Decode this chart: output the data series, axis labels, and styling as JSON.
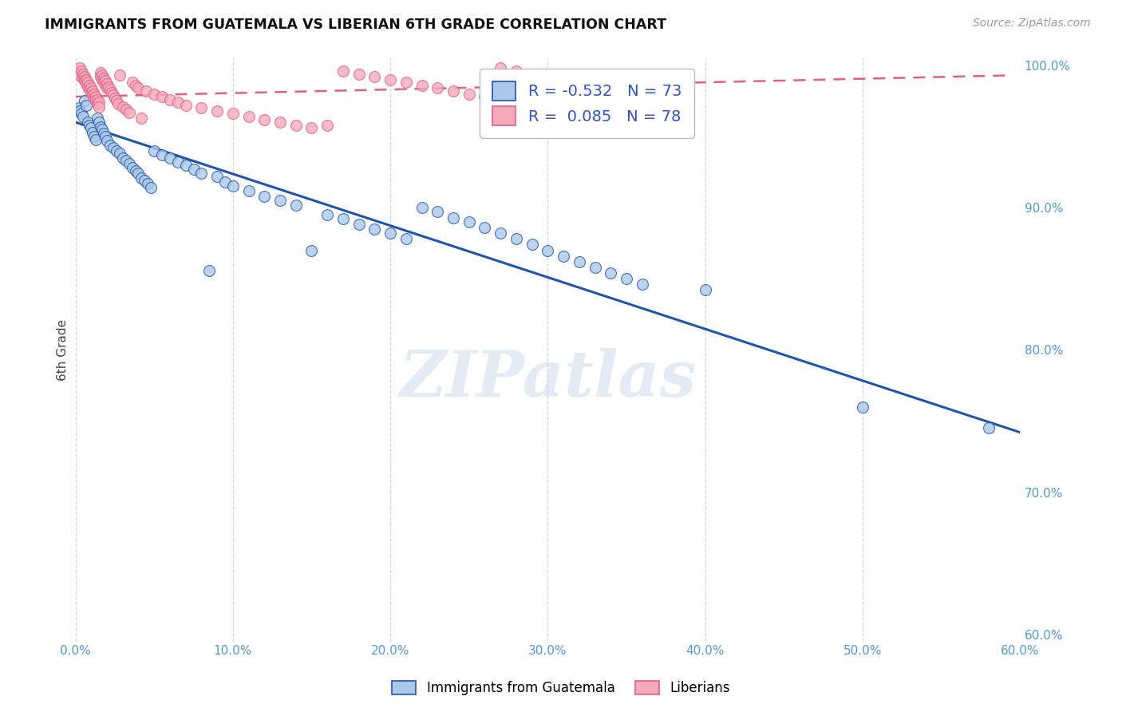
{
  "title": "IMMIGRANTS FROM GUATEMALA VS LIBERIAN 6TH GRADE CORRELATION CHART",
  "source": "Source: ZipAtlas.com",
  "ylabel": "6th Grade",
  "xlim": [
    0.0,
    0.6
  ],
  "ylim": [
    0.595,
    1.005
  ],
  "xticks": [
    0.0,
    0.1,
    0.2,
    0.3,
    0.4,
    0.5,
    0.6
  ],
  "yticks": [
    0.6,
    0.7,
    0.8,
    0.9,
    1.0
  ],
  "xticklabels": [
    "0.0%",
    "10.0%",
    "20.0%",
    "30.0%",
    "40.0%",
    "50.0%",
    "60.0%"
  ],
  "yticklabels": [
    "60.0%",
    "70.0%",
    "80.0%",
    "90.0%",
    "100.0%"
  ],
  "legend_blue_label": "Immigrants from Guatemala",
  "legend_pink_label": "Liberians",
  "r_blue": -0.532,
  "n_blue": 73,
  "r_pink": 0.085,
  "n_pink": 78,
  "blue_color": "#aac8e8",
  "blue_line_color": "#2255aa",
  "pink_color": "#f5aabc",
  "pink_line_color": "#e06080",
  "watermark": "ZIPatlas",
  "bg_color": "#ffffff",
  "grid_color": "#cccccc",
  "blue_scatter": [
    [
      0.002,
      0.97
    ],
    [
      0.003,
      0.968
    ],
    [
      0.004,
      0.966
    ],
    [
      0.005,
      0.964
    ],
    [
      0.006,
      0.975
    ],
    [
      0.007,
      0.972
    ],
    [
      0.008,
      0.96
    ],
    [
      0.009,
      0.958
    ],
    [
      0.01,
      0.956
    ],
    [
      0.011,
      0.953
    ],
    [
      0.012,
      0.95
    ],
    [
      0.013,
      0.948
    ],
    [
      0.014,
      0.963
    ],
    [
      0.015,
      0.96
    ],
    [
      0.016,
      0.957
    ],
    [
      0.017,
      0.955
    ],
    [
      0.018,
      0.952
    ],
    [
      0.019,
      0.95
    ],
    [
      0.02,
      0.947
    ],
    [
      0.022,
      0.944
    ],
    [
      0.024,
      0.942
    ],
    [
      0.026,
      0.94
    ],
    [
      0.028,
      0.938
    ],
    [
      0.03,
      0.935
    ],
    [
      0.032,
      0.933
    ],
    [
      0.034,
      0.931
    ],
    [
      0.036,
      0.928
    ],
    [
      0.038,
      0.926
    ],
    [
      0.04,
      0.924
    ],
    [
      0.042,
      0.921
    ],
    [
      0.044,
      0.919
    ],
    [
      0.046,
      0.917
    ],
    [
      0.048,
      0.914
    ],
    [
      0.05,
      0.94
    ],
    [
      0.055,
      0.937
    ],
    [
      0.06,
      0.935
    ],
    [
      0.065,
      0.932
    ],
    [
      0.07,
      0.93
    ],
    [
      0.075,
      0.927
    ],
    [
      0.08,
      0.924
    ],
    [
      0.085,
      0.856
    ],
    [
      0.09,
      0.922
    ],
    [
      0.095,
      0.918
    ],
    [
      0.1,
      0.915
    ],
    [
      0.11,
      0.912
    ],
    [
      0.12,
      0.908
    ],
    [
      0.13,
      0.905
    ],
    [
      0.14,
      0.902
    ],
    [
      0.15,
      0.87
    ],
    [
      0.16,
      0.895
    ],
    [
      0.17,
      0.892
    ],
    [
      0.18,
      0.888
    ],
    [
      0.19,
      0.885
    ],
    [
      0.2,
      0.882
    ],
    [
      0.21,
      0.878
    ],
    [
      0.22,
      0.9
    ],
    [
      0.23,
      0.897
    ],
    [
      0.24,
      0.893
    ],
    [
      0.25,
      0.89
    ],
    [
      0.26,
      0.886
    ],
    [
      0.27,
      0.882
    ],
    [
      0.28,
      0.878
    ],
    [
      0.29,
      0.874
    ],
    [
      0.3,
      0.87
    ],
    [
      0.31,
      0.866
    ],
    [
      0.32,
      0.862
    ],
    [
      0.33,
      0.858
    ],
    [
      0.34,
      0.854
    ],
    [
      0.35,
      0.85
    ],
    [
      0.36,
      0.846
    ],
    [
      0.4,
      0.842
    ],
    [
      0.5,
      0.76
    ],
    [
      0.58,
      0.745
    ]
  ],
  "pink_scatter": [
    [
      0.001,
      0.995
    ],
    [
      0.002,
      0.993
    ],
    [
      0.003,
      0.998
    ],
    [
      0.004,
      0.996
    ],
    [
      0.005,
      0.994
    ],
    [
      0.005,
      0.991
    ],
    [
      0.006,
      0.992
    ],
    [
      0.006,
      0.989
    ],
    [
      0.007,
      0.99
    ],
    [
      0.007,
      0.987
    ],
    [
      0.008,
      0.988
    ],
    [
      0.008,
      0.985
    ],
    [
      0.009,
      0.986
    ],
    [
      0.009,
      0.983
    ],
    [
      0.01,
      0.984
    ],
    [
      0.01,
      0.981
    ],
    [
      0.011,
      0.982
    ],
    [
      0.011,
      0.979
    ],
    [
      0.012,
      0.98
    ],
    [
      0.012,
      0.977
    ],
    [
      0.013,
      0.978
    ],
    [
      0.013,
      0.975
    ],
    [
      0.014,
      0.976
    ],
    [
      0.014,
      0.973
    ],
    [
      0.015,
      0.974
    ],
    [
      0.015,
      0.971
    ],
    [
      0.016,
      0.995
    ],
    [
      0.016,
      0.992
    ],
    [
      0.017,
      0.993
    ],
    [
      0.017,
      0.99
    ],
    [
      0.018,
      0.991
    ],
    [
      0.018,
      0.988
    ],
    [
      0.019,
      0.989
    ],
    [
      0.019,
      0.986
    ],
    [
      0.02,
      0.987
    ],
    [
      0.02,
      0.984
    ],
    [
      0.021,
      0.985
    ],
    [
      0.022,
      0.983
    ],
    [
      0.023,
      0.981
    ],
    [
      0.024,
      0.979
    ],
    [
      0.025,
      0.977
    ],
    [
      0.026,
      0.975
    ],
    [
      0.027,
      0.973
    ],
    [
      0.028,
      0.993
    ],
    [
      0.03,
      0.971
    ],
    [
      0.032,
      0.969
    ],
    [
      0.034,
      0.967
    ],
    [
      0.036,
      0.988
    ],
    [
      0.038,
      0.986
    ],
    [
      0.04,
      0.984
    ],
    [
      0.042,
      0.963
    ],
    [
      0.045,
      0.982
    ],
    [
      0.05,
      0.98
    ],
    [
      0.055,
      0.978
    ],
    [
      0.06,
      0.976
    ],
    [
      0.065,
      0.974
    ],
    [
      0.07,
      0.972
    ],
    [
      0.08,
      0.97
    ],
    [
      0.09,
      0.968
    ],
    [
      0.1,
      0.966
    ],
    [
      0.11,
      0.964
    ],
    [
      0.12,
      0.962
    ],
    [
      0.13,
      0.96
    ],
    [
      0.14,
      0.958
    ],
    [
      0.15,
      0.956
    ],
    [
      0.16,
      0.958
    ],
    [
      0.17,
      0.996
    ],
    [
      0.18,
      0.994
    ],
    [
      0.19,
      0.992
    ],
    [
      0.2,
      0.99
    ],
    [
      0.21,
      0.988
    ],
    [
      0.22,
      0.986
    ],
    [
      0.23,
      0.984
    ],
    [
      0.24,
      0.982
    ],
    [
      0.25,
      0.98
    ],
    [
      0.26,
      0.978
    ],
    [
      0.27,
      0.998
    ],
    [
      0.28,
      0.996
    ]
  ],
  "blue_line_x": [
    0.0,
    0.6
  ],
  "blue_line_y": [
    0.96,
    0.742
  ],
  "pink_line_x": [
    0.0,
    0.595
  ],
  "pink_line_y": [
    0.978,
    0.993
  ]
}
